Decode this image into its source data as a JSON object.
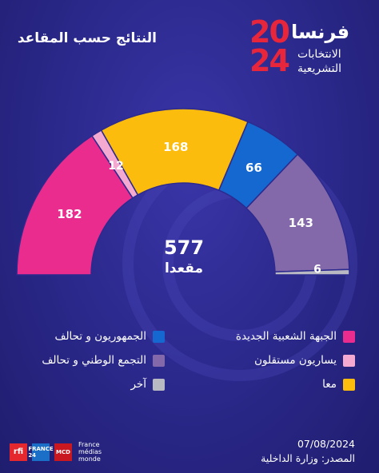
{
  "title": "النتائج حسب المقاعد",
  "brand": {
    "country": "فرنسا",
    "year_top": "20",
    "year_bottom": "24",
    "subtitle_line1": "الانتخابات",
    "subtitle_line2": "التشريعية",
    "year_color": "#e8263b"
  },
  "total": {
    "value": "577",
    "label": "مقعدا"
  },
  "chart_data": {
    "type": "pie",
    "subtype": "parliament-semicircle",
    "total": 577,
    "series": [
      {
        "name": "الجبهة الشعبية الجديدة",
        "value": 182,
        "color": "#ea2c8f"
      },
      {
        "name": "يساريون مستقلون",
        "value": 12,
        "color": "#f4a9d1"
      },
      {
        "name": "معا",
        "value": 168,
        "color": "#fcbc0e"
      },
      {
        "name": "الجمهوريون و تحالف",
        "value": 66,
        "color": "#1468cf"
      },
      {
        "name": "التجمع الوطني و تحالف",
        "value": 143,
        "color": "#8369a9"
      },
      {
        "name": "آخر",
        "value": 6,
        "color": "#b9b9c4"
      }
    ]
  },
  "footer": {
    "date": "07/08/2024",
    "source": "المصدر: وزارة الداخلية",
    "logo_rfi": "rfi",
    "logo_f24": "FRANCE 24",
    "logo_mcd": "MCD",
    "logo_fmm_line1": "France",
    "logo_fmm_line2": "médias",
    "logo_fmm_line3": "monde"
  }
}
